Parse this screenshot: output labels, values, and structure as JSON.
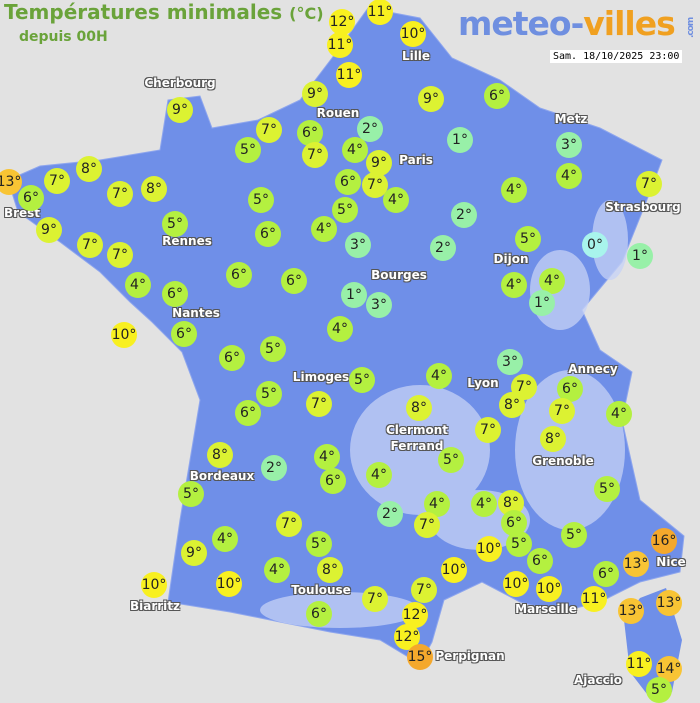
{
  "header": {
    "title": "Températures minimales",
    "unit": "(°C)",
    "subtitle": "depuis 00H",
    "logo_part1": "meteo-",
    "logo_part2": "villes",
    "logo_suffix": ".com",
    "datetime": "Sam. 18/10/2025 23:00"
  },
  "colors": {
    "land": "#6f8fe8",
    "sea": "#e2e2e2",
    "title": "#6aa33a",
    "scale": {
      "0": "#a8f4ec",
      "1-3": "#98f0a8",
      "4-6": "#b4f040",
      "7-9": "#dcf232",
      "10-12": "#f8f020",
      "13-14": "#f8c434",
      "15+": "#f4a82c"
    }
  },
  "cities": [
    "Cherbourg",
    "Rouen",
    "Lille",
    "Paris",
    "Metz",
    "Strasbourg",
    "Brest",
    "Rennes",
    "Nantes",
    "Bourges",
    "Dijon",
    "Lyon",
    "Annecy",
    "Limoges",
    "Clermont\nFerrand",
    "Grenoble",
    "Bordeaux",
    "Toulouse",
    "Biarritz",
    "Marseille",
    "Nice",
    "Perpignan",
    "Ajaccio"
  ],
  "temperatures": [
    12,
    11,
    10,
    11,
    11,
    9,
    9,
    6,
    9,
    7,
    6,
    2,
    5,
    7,
    4,
    9,
    1,
    3,
    4,
    13,
    6,
    7,
    8,
    7,
    8,
    6,
    7,
    4,
    5,
    5,
    4,
    7,
    9,
    5,
    6,
    4,
    2,
    3,
    2,
    5,
    0,
    1,
    7,
    7,
    6,
    6,
    4,
    4,
    1,
    4,
    6,
    1,
    3,
    10,
    6,
    4,
    6,
    5,
    5,
    4,
    3,
    7,
    6,
    8,
    7,
    4,
    5,
    6,
    7,
    8,
    7,
    8,
    8,
    2,
    4,
    6,
    4,
    5,
    5,
    2,
    4,
    7,
    4,
    8,
    5,
    7,
    4,
    5,
    6,
    5,
    5,
    9,
    4,
    8,
    10,
    6,
    10,
    16,
    13,
    6,
    10,
    10,
    7,
    10,
    10,
    11,
    13,
    13,
    7,
    6,
    12,
    12,
    15,
    11,
    14,
    5
  ]
}
